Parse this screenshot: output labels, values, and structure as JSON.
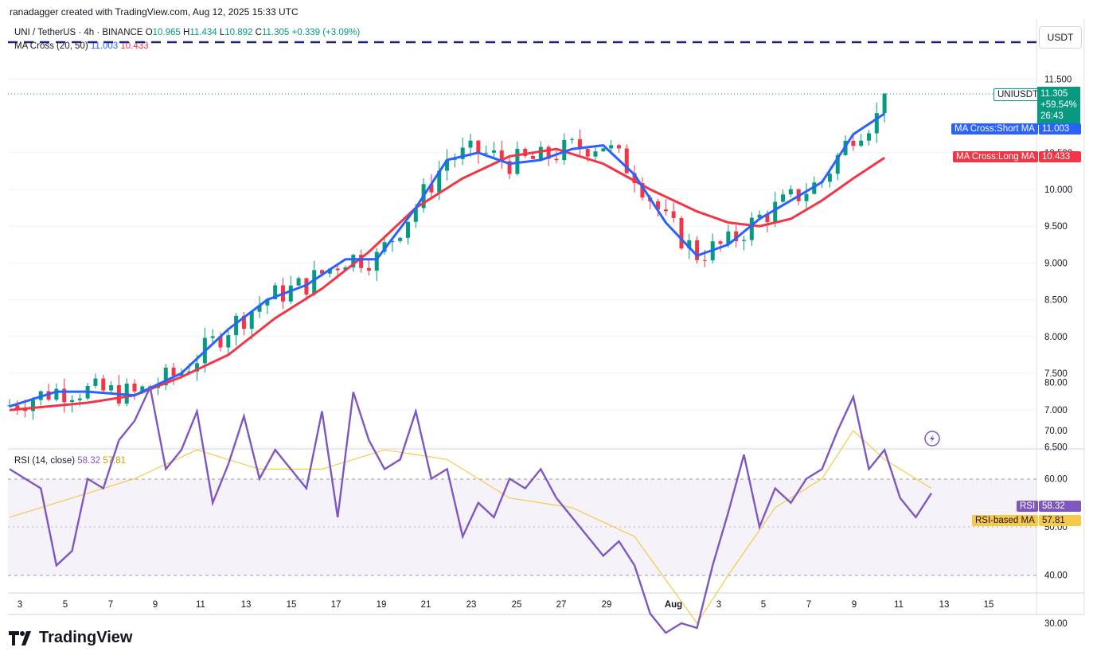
{
  "header": {
    "caption": "ranadagger created with TradingView.com, Aug 12, 2025 15:33 UTC"
  },
  "legend": {
    "symbol": "UNI / TetherUS · 4h · BINANCE",
    "o_label": "O",
    "o": "10.965",
    "h_label": "H",
    "h": "11.434",
    "l_label": "L",
    "l": "10.892",
    "c_label": "C",
    "c": "11.305",
    "change": "+0.339 (+3.09%)",
    "ma_label": "MA Cross (20, 50)",
    "ma_short": "11.003",
    "ma_long": "10.433",
    "rsi_label": "RSI (14, close)",
    "rsi_value": "58.32",
    "rsi_ma": "57.81"
  },
  "price_axis": {
    "currency": "USDT",
    "ticks": [
      "11.500",
      "10.500",
      "10.000",
      "9.500",
      "9.000",
      "8.500",
      "8.000",
      "7.500",
      "7.000",
      "6.500"
    ]
  },
  "rsi_axis": {
    "ticks": [
      "80.00",
      "70.00",
      "60.00",
      "50.00",
      "40.00",
      "30.00"
    ]
  },
  "tags": {
    "symbol": "UNIUSDT",
    "price": "11.305",
    "change_pct": "+59.54%",
    "countdown": "26:43",
    "short_ma_label": "MA Cross:Short MA",
    "short_ma_value": "11.003",
    "long_ma_label": "MA Cross:Long MA",
    "long_ma_value": "10.433",
    "rsi_label": "RSI",
    "rsi_value": "58.32",
    "rsi_ma_label": "RSI-based MA",
    "rsi_ma_value": "57.81"
  },
  "time_axis": {
    "labels": [
      "3",
      "5",
      "7",
      "9",
      "11",
      "13",
      "15",
      "17",
      "19",
      "21",
      "23",
      "25",
      "27",
      "29",
      "Aug",
      "3",
      "5",
      "7",
      "9",
      "11",
      "13",
      "15"
    ]
  },
  "footer": {
    "brand": "TradingView"
  },
  "colors": {
    "up": "#089981",
    "down": "#f23645",
    "short_ma": "#2962ff",
    "long_ma": "#f23645",
    "rsi": "#7e57c2",
    "rsi_ma": "#f7c948",
    "resistance": "#1a237e"
  },
  "chart_data": {
    "type": "candlestick",
    "price_axis_unit": "USDT",
    "ylim": [
      6.5,
      12.0
    ],
    "resistance_level": 11.93,
    "current_price": 11.305,
    "short_ma_path": [
      [
        0,
        7.05
      ],
      [
        6,
        7.25
      ],
      [
        10,
        7.25
      ],
      [
        16,
        7.2
      ],
      [
        22,
        7.5
      ],
      [
        28,
        8.1
      ],
      [
        33,
        8.5
      ],
      [
        38,
        8.7
      ],
      [
        43,
        9.05
      ],
      [
        47,
        9.05
      ],
      [
        52,
        9.75
      ],
      [
        56,
        10.4
      ],
      [
        60,
        10.5
      ],
      [
        64,
        10.35
      ],
      [
        68,
        10.4
      ],
      [
        72,
        10.55
      ],
      [
        76,
        10.6
      ],
      [
        80,
        10.2
      ],
      [
        84,
        9.55
      ],
      [
        88,
        9.1
      ],
      [
        92,
        9.25
      ],
      [
        96,
        9.6
      ],
      [
        100,
        9.85
      ],
      [
        104,
        10.1
      ],
      [
        108,
        10.75
      ],
      [
        112,
        11.03
      ]
    ],
    "long_ma_path": [
      [
        0,
        7.0
      ],
      [
        10,
        7.1
      ],
      [
        16,
        7.2
      ],
      [
        22,
        7.45
      ],
      [
        28,
        7.75
      ],
      [
        34,
        8.25
      ],
      [
        40,
        8.65
      ],
      [
        46,
        9.15
      ],
      [
        52,
        9.75
      ],
      [
        58,
        10.15
      ],
      [
        64,
        10.45
      ],
      [
        70,
        10.55
      ],
      [
        76,
        10.35
      ],
      [
        82,
        10.0
      ],
      [
        88,
        9.7
      ],
      [
        92,
        9.55
      ],
      [
        96,
        9.5
      ],
      [
        100,
        9.6
      ],
      [
        104,
        9.85
      ],
      [
        108,
        10.15
      ],
      [
        112,
        10.43
      ]
    ],
    "rsi_path": [
      [
        0,
        62
      ],
      [
        4,
        58
      ],
      [
        6,
        42
      ],
      [
        8,
        45
      ],
      [
        10,
        60
      ],
      [
        12,
        58
      ],
      [
        14,
        68
      ],
      [
        16,
        72
      ],
      [
        18,
        79
      ],
      [
        20,
        62
      ],
      [
        22,
        66
      ],
      [
        24,
        74
      ],
      [
        26,
        55
      ],
      [
        28,
        63
      ],
      [
        30,
        73
      ],
      [
        32,
        60
      ],
      [
        34,
        66
      ],
      [
        36,
        62
      ],
      [
        38,
        58
      ],
      [
        40,
        74
      ],
      [
        42,
        52
      ],
      [
        44,
        78
      ],
      [
        46,
        68
      ],
      [
        48,
        62
      ],
      [
        50,
        64
      ],
      [
        52,
        74
      ],
      [
        54,
        60
      ],
      [
        56,
        62
      ],
      [
        58,
        48
      ],
      [
        60,
        55
      ],
      [
        62,
        52
      ],
      [
        64,
        60
      ],
      [
        66,
        58
      ],
      [
        68,
        62
      ],
      [
        70,
        56
      ],
      [
        72,
        52
      ],
      [
        74,
        48
      ],
      [
        76,
        44
      ],
      [
        78,
        47
      ],
      [
        80,
        42
      ],
      [
        82,
        32
      ],
      [
        84,
        28
      ],
      [
        86,
        30
      ],
      [
        88,
        29
      ],
      [
        90,
        42
      ],
      [
        92,
        53
      ],
      [
        94,
        65
      ],
      [
        96,
        50
      ],
      [
        98,
        58
      ],
      [
        100,
        55
      ],
      [
        102,
        60
      ],
      [
        104,
        62
      ],
      [
        106,
        70
      ],
      [
        108,
        77
      ],
      [
        110,
        62
      ],
      [
        112,
        66
      ],
      [
        114,
        56
      ],
      [
        116,
        52
      ],
      [
        118,
        57
      ]
    ],
    "rsi_ma_path": [
      [
        0,
        52
      ],
      [
        8,
        56
      ],
      [
        16,
        60
      ],
      [
        24,
        66
      ],
      [
        32,
        62
      ],
      [
        40,
        62
      ],
      [
        48,
        66
      ],
      [
        56,
        64
      ],
      [
        64,
        56
      ],
      [
        72,
        54
      ],
      [
        80,
        48
      ],
      [
        88,
        30
      ],
      [
        92,
        40
      ],
      [
        98,
        54
      ],
      [
        104,
        60
      ],
      [
        108,
        70
      ],
      [
        112,
        64
      ],
      [
        118,
        58
      ]
    ],
    "rsi_levels": [
      70,
      30
    ],
    "rsi_ylim": [
      25,
      82
    ]
  }
}
